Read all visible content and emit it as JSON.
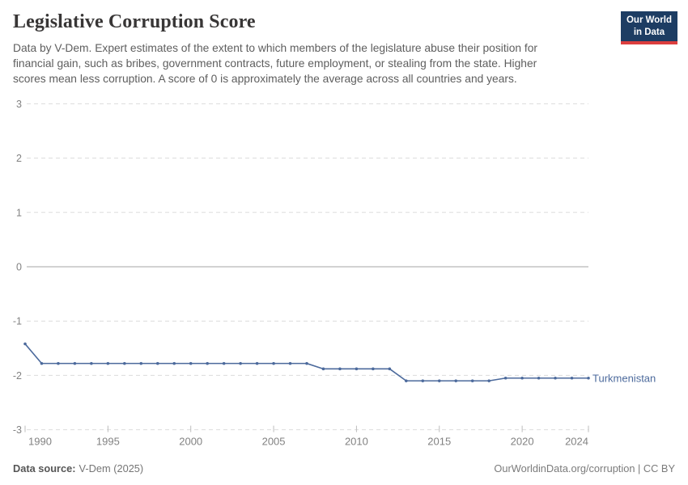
{
  "header": {
    "title": "Legislative Corruption Score",
    "subtitle_lines": [
      "Data by V-Dem. Expert estimates of the extent to which members of the legislature abuse their position for",
      "financial gain, such as bribes, government contracts, future employment, or stealing from the state. Higher",
      "scores mean less corruption. A score of 0 is approximately the average across all countries and years."
    ],
    "logo": {
      "line1": "Our World",
      "line2": "in Data"
    }
  },
  "chart_data": {
    "type": "line",
    "title": "Legislative Corruption Score",
    "xlabel": "",
    "ylabel": "",
    "xlim": [
      1990,
      2024
    ],
    "ylim": [
      -3,
      3
    ],
    "x_ticks": [
      1990,
      1995,
      2000,
      2005,
      2010,
      2015,
      2020,
      2024
    ],
    "y_ticks": [
      3,
      2,
      1,
      0,
      -1,
      -2,
      -3
    ],
    "grid": "horizontal dashed lines, solid zero line",
    "legend_position": "label at end of line",
    "series": [
      {
        "name": "Turkmenistan",
        "color": "#4C6A9C",
        "x": [
          1990,
          1991,
          1992,
          1993,
          1994,
          1995,
          1996,
          1997,
          1998,
          1999,
          2000,
          2001,
          2002,
          2003,
          2004,
          2005,
          2006,
          2007,
          2008,
          2009,
          2010,
          2011,
          2012,
          2013,
          2014,
          2015,
          2016,
          2017,
          2018,
          2019,
          2020,
          2021,
          2022,
          2023,
          2024
        ],
        "values": [
          -1.42,
          -1.78,
          -1.78,
          -1.78,
          -1.78,
          -1.78,
          -1.78,
          -1.78,
          -1.78,
          -1.78,
          -1.78,
          -1.78,
          -1.78,
          -1.78,
          -1.78,
          -1.78,
          -1.78,
          -1.78,
          -1.88,
          -1.88,
          -1.88,
          -1.88,
          -1.88,
          -2.1,
          -2.1,
          -2.1,
          -2.1,
          -2.1,
          -2.1,
          -2.05,
          -2.05,
          -2.05,
          -2.05,
          -2.05,
          -2.05
        ]
      }
    ]
  },
  "footer": {
    "source_label": "Data source:",
    "source_value": "V-Dem (2025)",
    "rights": "OurWorldinData.org/corruption | CC BY"
  },
  "colors": {
    "line": "#4C6A9C",
    "entity_label": "#4C6A9C",
    "grid": "#dcdcdc",
    "zero_line": "#a5a5a5",
    "tick_mark": "#bdbdbd",
    "axis_text": "#828282",
    "logo_bg": "#1d3d63",
    "logo_accent": "#dc3e3e"
  }
}
